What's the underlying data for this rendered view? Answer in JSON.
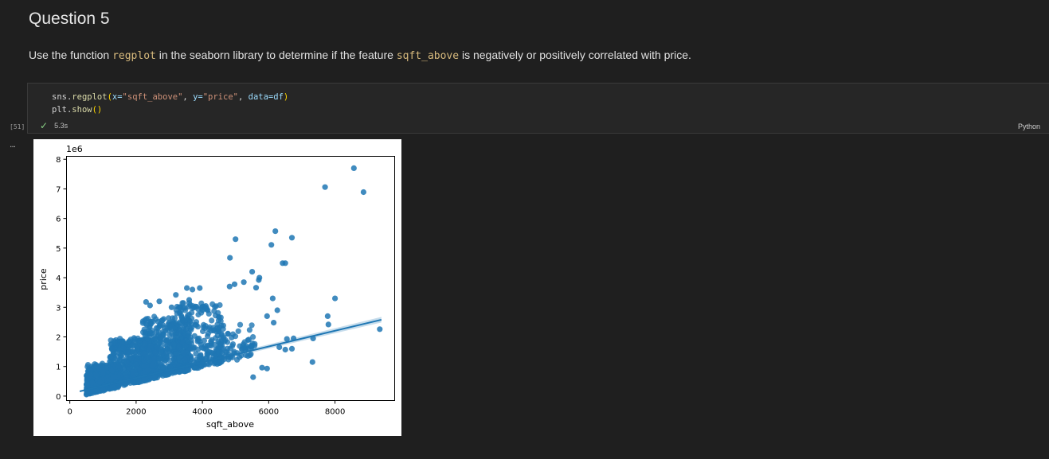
{
  "markdown": {
    "heading": "Question 5",
    "para_before": "Use the function ",
    "code1": "regplot",
    "para_mid": " in the seaborn library to determine if the feature ",
    "code2": "sqft_above",
    "para_after": " is negatively or positively correlated with price."
  },
  "cell": {
    "code": {
      "line1": {
        "obj": "sns",
        "dot": ".",
        "fn": "regplot",
        "open": "(",
        "k1": "x=",
        "v1": "\"sqft_above\"",
        "sep1": ", ",
        "k2": "y=",
        "v2": "\"price\"",
        "sep2": ", ",
        "k3": "data=",
        "v3": "df",
        "close": ")"
      },
      "line2": {
        "obj": "plt",
        "dot": ".",
        "fn": "show",
        "parens": "()"
      }
    },
    "exec_count": "[51]",
    "exec_time": "5.3s",
    "language": "Python",
    "status_icon": "check-icon",
    "more_icon": "..."
  },
  "chart_data": {
    "type": "scatter",
    "title": "",
    "xlabel": "sqft_above",
    "ylabel": "price",
    "y_offset_label": "1e6",
    "xlim": [
      -100,
      9800
    ],
    "ylim": [
      -0.15,
      8.1
    ],
    "x_ticks": [
      0,
      2000,
      4000,
      6000,
      8000
    ],
    "x_tick_labels": [
      "0",
      "2000",
      "4000",
      "6000",
      "8000"
    ],
    "y_ticks": [
      0,
      1,
      2,
      3,
      4,
      5,
      6,
      7,
      8
    ],
    "y_tick_labels": [
      "0",
      "1",
      "2",
      "3",
      "4",
      "5",
      "6",
      "7",
      "8"
    ],
    "grid": false,
    "point_color": "#1f77b4",
    "series": [
      {
        "points": [
          [
            8570,
            7.7
          ],
          [
            7700,
            7.06
          ],
          [
            8860,
            6.89
          ],
          [
            6200,
            5.57
          ],
          [
            6700,
            5.35
          ],
          [
            5000,
            5.3
          ],
          [
            6080,
            5.11
          ],
          [
            4830,
            4.67
          ],
          [
            6420,
            4.49
          ],
          [
            6500,
            4.49
          ],
          [
            5500,
            4.2
          ],
          [
            5700,
            3.92
          ],
          [
            5720,
            4.0
          ],
          [
            5620,
            3.66
          ],
          [
            5250,
            3.85
          ],
          [
            4970,
            3.78
          ],
          [
            4820,
            3.7
          ],
          [
            6120,
            3.3
          ],
          [
            6260,
            2.9
          ],
          [
            6150,
            2.48
          ],
          [
            5950,
            2.7
          ],
          [
            8000,
            3.3
          ],
          [
            7780,
            2.7
          ],
          [
            7800,
            2.42
          ],
          [
            9350,
            2.26
          ],
          [
            7340,
            1.95
          ],
          [
            6750,
            1.95
          ],
          [
            6550,
            1.93
          ],
          [
            6500,
            1.57
          ],
          [
            6320,
            1.65
          ],
          [
            6700,
            1.6
          ],
          [
            7320,
            1.15
          ],
          [
            5950,
            0.93
          ],
          [
            5800,
            0.96
          ],
          [
            5530,
            0.64
          ],
          [
            3530,
            3.65
          ],
          [
            3700,
            3.6
          ],
          [
            3200,
            3.42
          ],
          [
            2700,
            3.2
          ],
          [
            2300,
            3.18
          ],
          [
            2420,
            3.06
          ],
          [
            3920,
            3.65
          ],
          [
            3070,
            3.0
          ],
          [
            4000,
            2.9
          ],
          [
            3600,
            3.25
          ]
        ]
      }
    ],
    "cluster": [
      {
        "x": [
          500,
          1500
        ],
        "y": [
          0.05,
          1.1
        ],
        "n": 650
      },
      {
        "x": [
          1200,
          2600
        ],
        "y": [
          0.2,
          2.0
        ],
        "n": 650
      },
      {
        "x": [
          2200,
          3600
        ],
        "y": [
          0.5,
          2.8
        ],
        "n": 500
      },
      {
        "x": [
          3200,
          4600
        ],
        "y": [
          0.6,
          3.3
        ],
        "n": 260
      },
      {
        "x": [
          4300,
          5600
        ],
        "y": [
          0.6,
          2.5
        ],
        "n": 80
      }
    ],
    "regression": {
      "x": [
        300,
        9400
      ],
      "y": [
        0.16,
        2.58
      ]
    }
  }
}
